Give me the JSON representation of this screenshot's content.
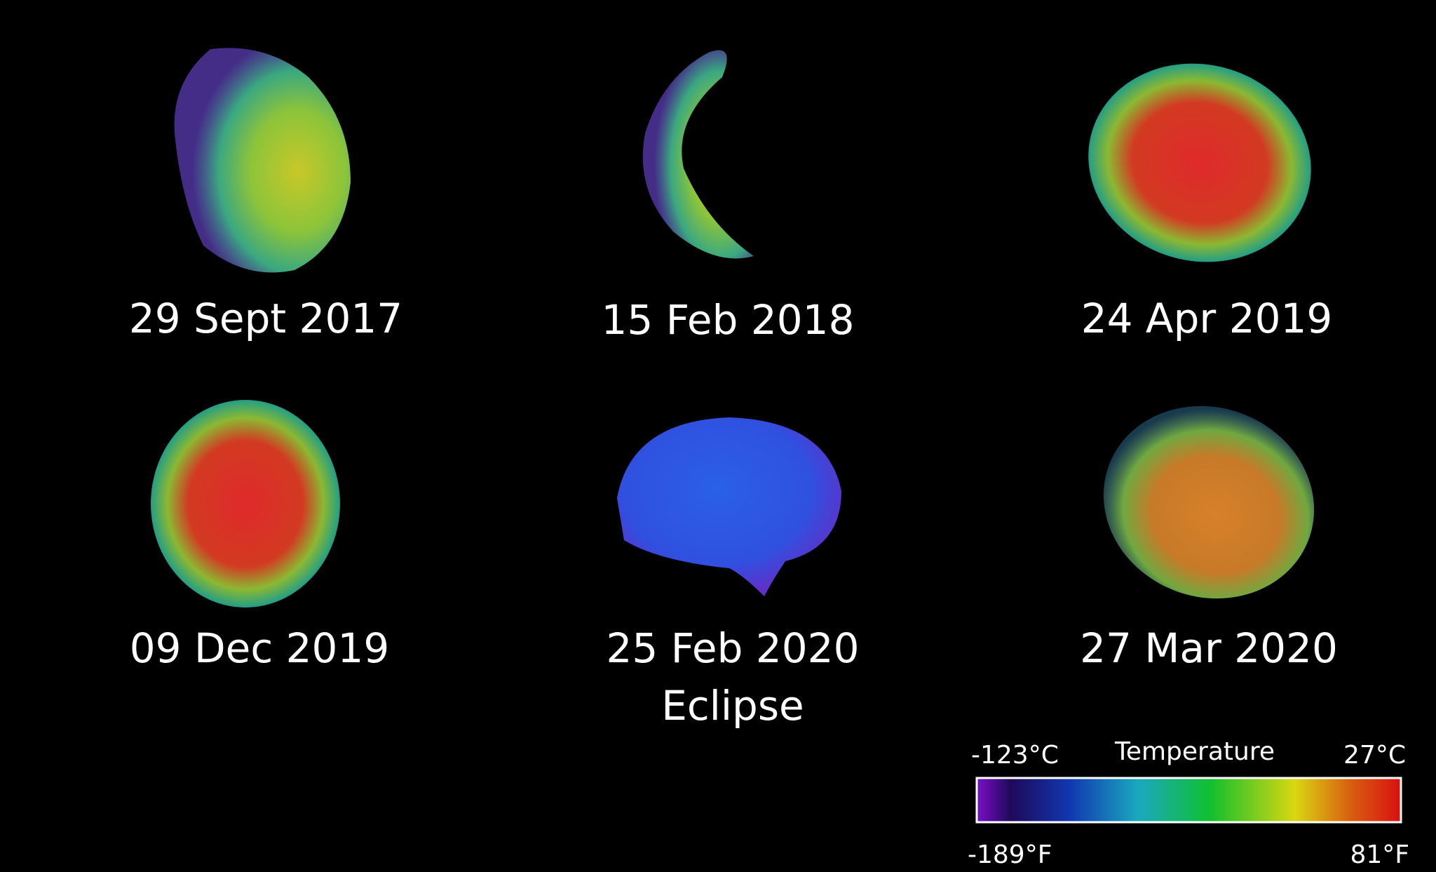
{
  "panels": [
    {
      "date": "29 Sept 2017"
    },
    {
      "date": "15 Feb 2018"
    },
    {
      "date": "24 Apr 2019"
    },
    {
      "date": "09 Dec 2019"
    },
    {
      "date": "25 Feb 2020",
      "note": "Eclipse"
    },
    {
      "date": "27 Mar 2020"
    }
  ],
  "colorbar": {
    "title": "Temperature",
    "min_c": "-123°C",
    "max_c": "27°C",
    "min_f": "-189°F",
    "max_f": "81°F"
  }
}
